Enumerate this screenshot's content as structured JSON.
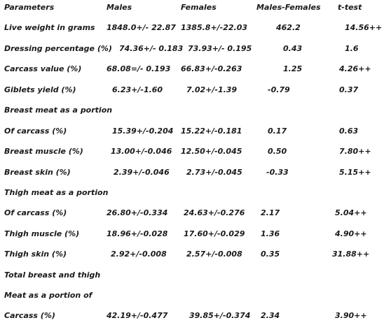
{
  "table": {
    "headers": [
      "Parameters",
      "Males",
      "Females",
      "Males-Females",
      "t-test"
    ],
    "rows": [
      {
        "cells": [
          "Live weight in grams",
          "1848.0+/- 22.87",
          "1385.8+/-22.03",
          "462.2",
          "14.56++"
        ]
      },
      {
        "cells": [
          "Dressing percentage (%)",
          "74.36+/- 0.183",
          "73.93+/- 0.195",
          "0.43",
          "1.6"
        ]
      },
      {
        "cells": [
          "Carcass value (%)",
          "68.08=/- 0.193",
          "66.83+/-0.263",
          "1.25",
          "4.26++"
        ]
      },
      {
        "cells": [
          "Giblets yield (%)",
          "6.23+/-1.60",
          "7.02+/-1.39",
          "-0.79",
          "0.37"
        ]
      },
      {
        "cells": [
          "Breast meat as a portion",
          "",
          "",
          "",
          ""
        ]
      },
      {
        "cells": [
          "Of carcass (%)",
          "15.39+/-0.204",
          "15.22+/-0.181",
          "0.17",
          "0.63"
        ]
      },
      {
        "cells": [
          "Breast muscle (%)",
          "13.00+/-0.046",
          "12.50+/-0.045",
          "0.50",
          "7.80++"
        ]
      },
      {
        "cells": [
          "Breast skin (%)",
          "2.39+/-0.046",
          "2.73+/-0.045",
          "-0.33",
          "5.15++"
        ]
      },
      {
        "cells": [
          "Thigh meat as a portion",
          "",
          "",
          "",
          ""
        ]
      },
      {
        "cells": [
          "Of carcass (%)",
          "26.80+/-0.334",
          "24.63+/-0.276",
          "2.17",
          "5.04++"
        ]
      },
      {
        "cells": [
          "Thigh muscle (%)",
          "18.96+/-0.028",
          "17.60+/-0.029",
          "1.36",
          "4.90++"
        ]
      },
      {
        "cells": [
          "Thigh skin (%)",
          "2.92+/-0.008",
          "2.57+/-0.008",
          "0.35",
          "31.88++"
        ]
      },
      {
        "cells": [
          "Total breast and thigh",
          "",
          "",
          "",
          ""
        ]
      },
      {
        "cells": [
          "Meat as a portion of",
          "",
          "",
          "",
          ""
        ]
      },
      {
        "cells": [
          "Carcass (%)",
          "42.19+/-0.477",
          "39.85+/-0.374",
          "2.34",
          "3.90++"
        ]
      }
    ]
  }
}
